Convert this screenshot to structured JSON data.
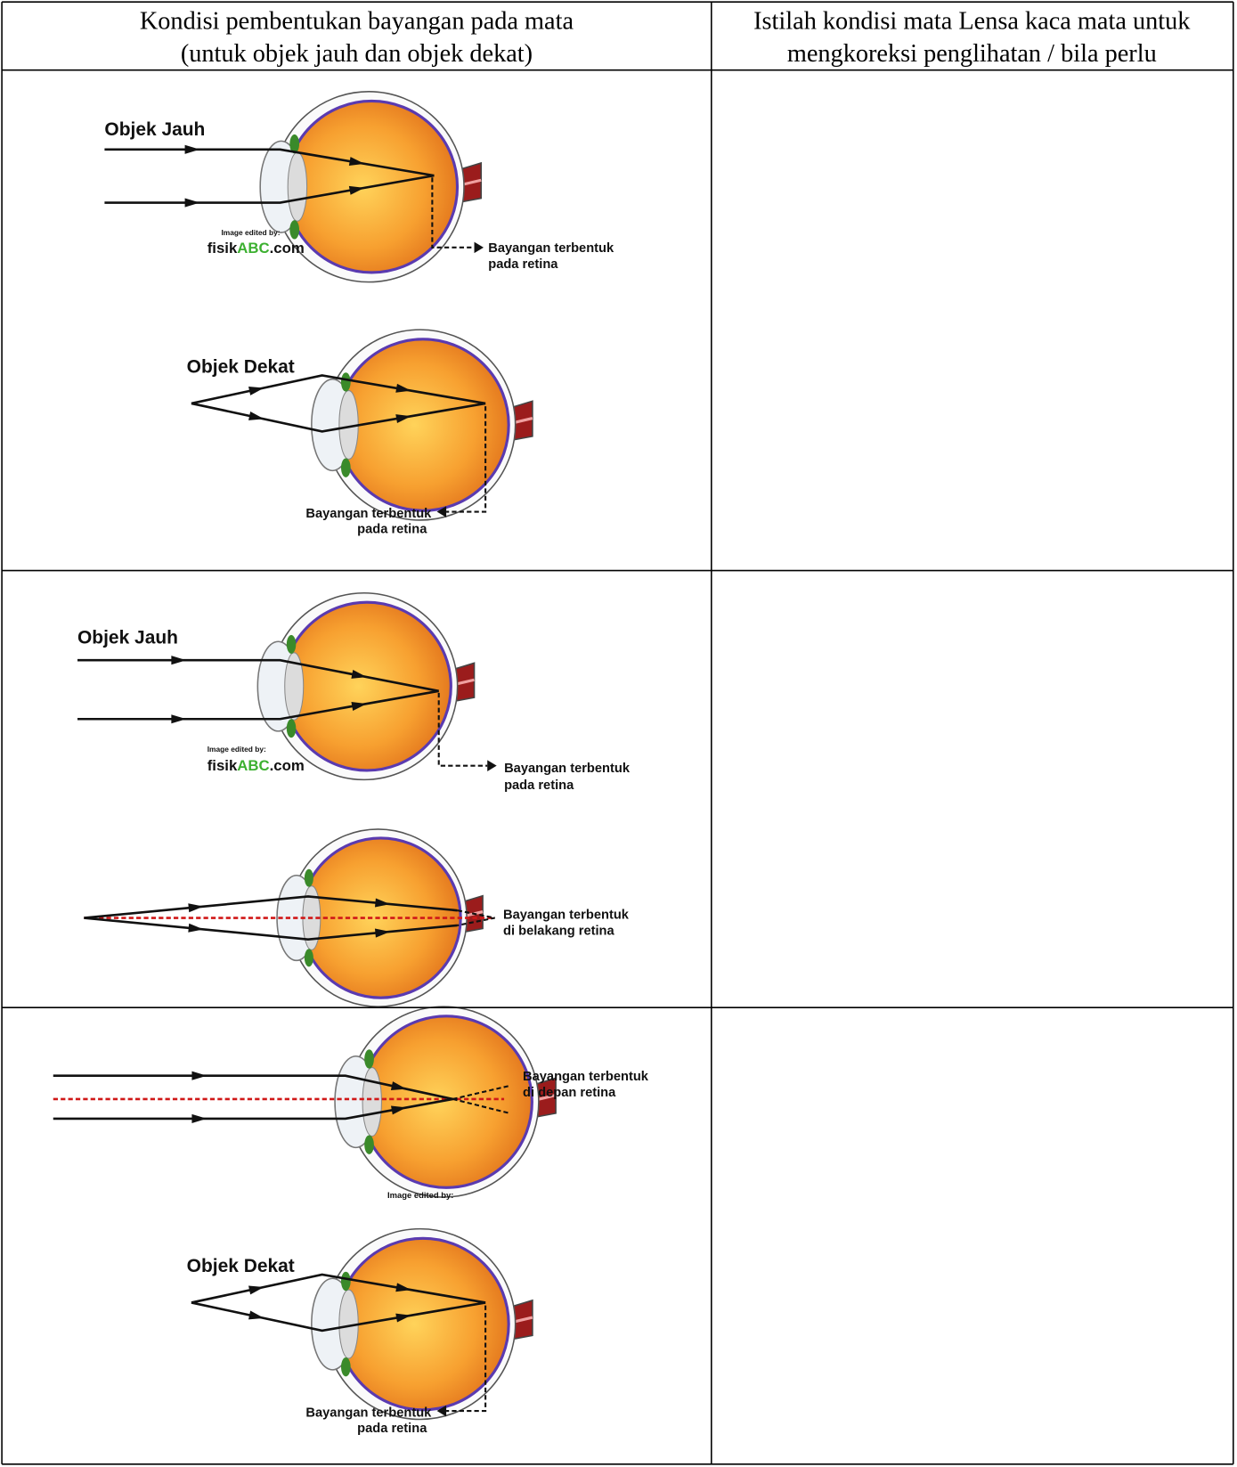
{
  "table": {
    "header": [
      [
        "Kondisi pembentukan bayangan pada mata",
        "(untuk objek jauh dan objek dekat)"
      ],
      [
        "Istilah kondisi mata Lensa kaca mata untuk",
        "mengkoreksi penglihatan / bila perlu"
      ]
    ],
    "rows": [
      {
        "diagrams": [
          {
            "object_label": "Objek Jauh",
            "credit": "Image edited by:",
            "site": [
              "fisik",
              "ABC",
              ".com"
            ],
            "caption": [
              "Bayangan terbentuk",
              "pada retina"
            ]
          },
          {
            "object_label": "Objek Dekat",
            "caption": [
              "Bayangan terbentuk",
              "pada retina"
            ]
          }
        ]
      },
      {
        "diagrams": [
          {
            "object_label": "Objek Jauh",
            "credit": "Image edited by:",
            "site": [
              "fisik",
              "ABC",
              ".com"
            ],
            "caption": [
              "Bayangan terbentuk",
              "pada retina"
            ]
          },
          {
            "caption": [
              "Bayangan terbentuk",
              "di belakang retina"
            ]
          }
        ]
      },
      {
        "diagrams": [
          {
            "caption": [
              "Bayangan terbentuk",
              "di depan retina"
            ],
            "credit": "Image edited by:"
          },
          {
            "object_label": "Objek Dekat",
            "caption": [
              "Bayangan terbentuk",
              "pada retina"
            ]
          }
        ]
      }
    ]
  }
}
